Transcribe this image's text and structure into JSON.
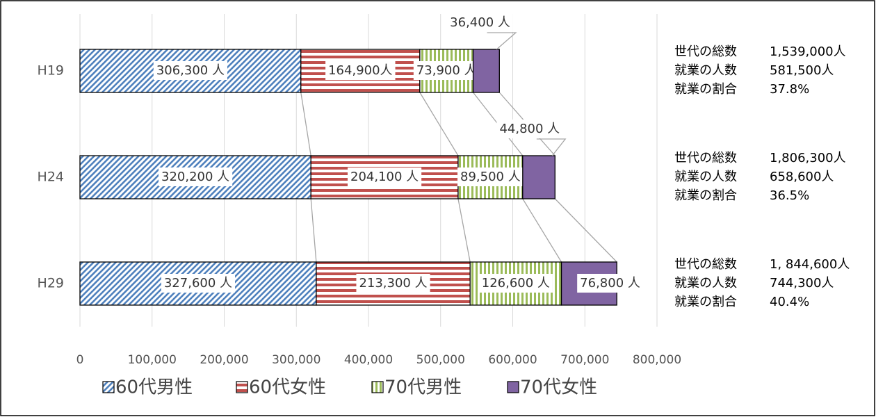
{
  "chart_data": {
    "type": "stacked-bar-horizontal",
    "categories": [
      "H19",
      "H24",
      "H29"
    ],
    "series": [
      {
        "name": "60代男性",
        "color": "#4f81bd",
        "pattern": "diagonal",
        "values": [
          306300,
          320200,
          327600
        ],
        "value_labels": [
          "306,300 人",
          "320,200 人",
          "327,600 人"
        ]
      },
      {
        "name": "60代女性",
        "color": "#c0504d",
        "pattern": "horizontal",
        "values": [
          164900,
          204100,
          213300
        ],
        "value_labels": [
          "164,900人",
          "204,100 人",
          "213,300 人"
        ]
      },
      {
        "name": "70代男性",
        "color": "#9bbb59",
        "pattern": "vertical",
        "values": [
          73900,
          89500,
          126600
        ],
        "value_labels": [
          "73,900 人",
          "89,500 人",
          "126,600 人"
        ]
      },
      {
        "name": "70代女性",
        "color": "#8064a2",
        "pattern": "solid",
        "values": [
          36400,
          44800,
          76800
        ],
        "value_labels": [
          "36,400 人",
          "44,800 人",
          "76,800 人"
        ]
      }
    ],
    "xlim": [
      0,
      800000
    ],
    "xticks": [
      0,
      {
        "value": 100000,
        "label": "100,000"
      },
      {
        "value": 200000,
        "label": "200,000"
      },
      {
        "value": 300000,
        "label": "300,000"
      },
      {
        "value": 400000,
        "label": "400,000"
      },
      {
        "value": 500000,
        "label": "500,000"
      },
      {
        "value": 600000,
        "label": "600,000"
      },
      {
        "value": 700000,
        "label": "700,000"
      },
      {
        "value": 800000,
        "label": "800,000"
      }
    ],
    "grid": true,
    "legend": "bottom",
    "annotations": [
      [
        {
          "label": "世代の総数",
          "text": "1,539,000人"
        },
        {
          "label": "就業の人数",
          "text": "581,500人"
        },
        {
          "label": "就業の割合",
          "text": "37.8%"
        }
      ],
      [
        {
          "label": "世代の総数",
          "text": "1,806,300人"
        },
        {
          "label": "就業の人数",
          "text": "658,600人"
        },
        {
          "label": "就業の割合",
          "text": "36.5%"
        }
      ],
      [
        {
          "label": "世代の総数",
          "text": "1, 844,600人"
        },
        {
          "label": "就業の人数",
          "text": "744,300人"
        },
        {
          "label": "就業の割合",
          "text": "40.4%"
        }
      ]
    ]
  }
}
